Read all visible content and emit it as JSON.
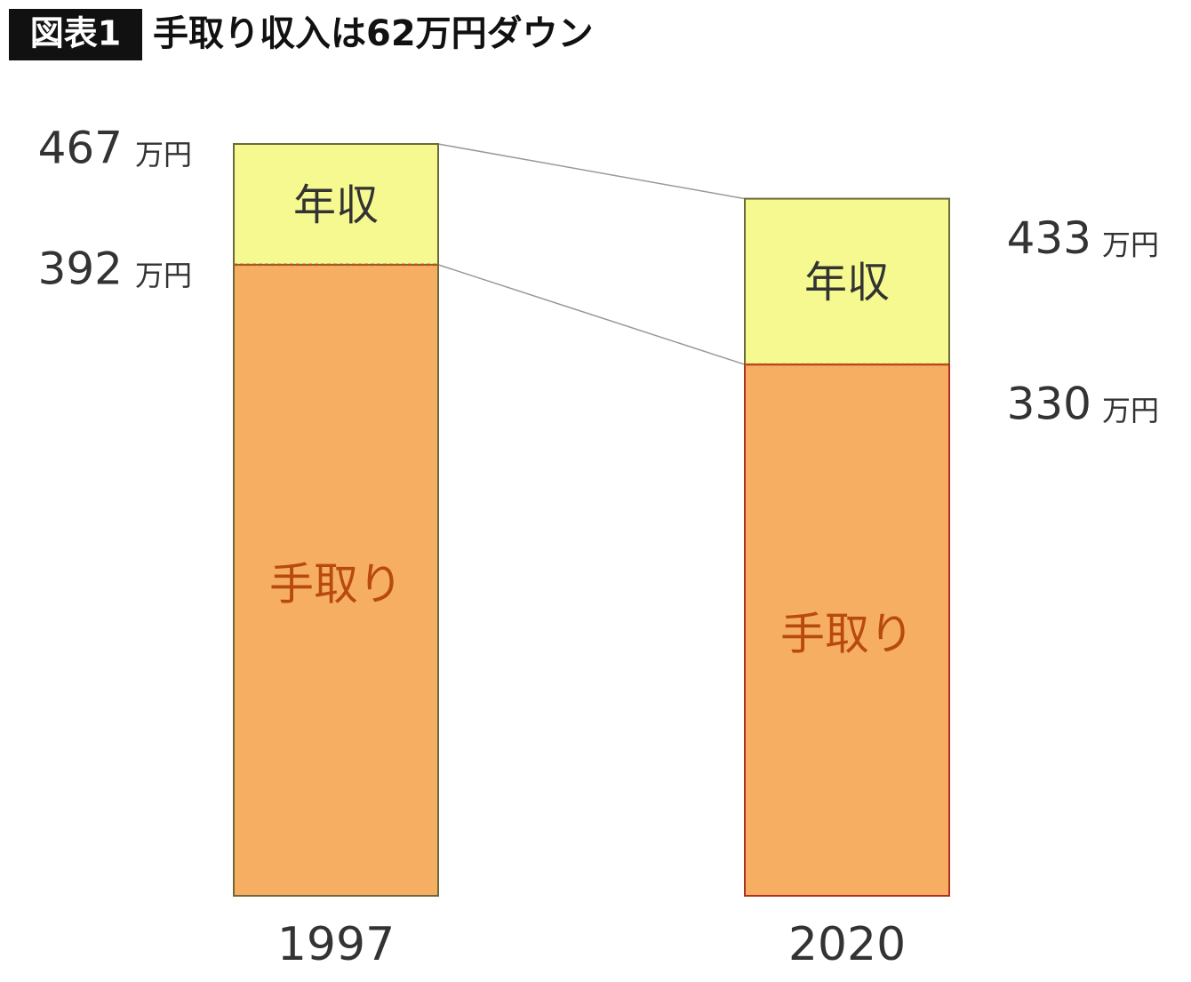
{
  "chart_data": {
    "type": "overlap_bar",
    "badge": "図表1",
    "title": "手取り収入は62万円ダウン",
    "unit": "万円",
    "categories": [
      "1997",
      "2020"
    ],
    "series": [
      {
        "name": "年収",
        "color": "#f5f98f",
        "values": [
          467,
          433
        ]
      },
      {
        "name": "手取り",
        "color": "#f6ae62",
        "values": [
          392,
          330
        ]
      }
    ],
    "ylim": [
      0,
      467
    ]
  }
}
